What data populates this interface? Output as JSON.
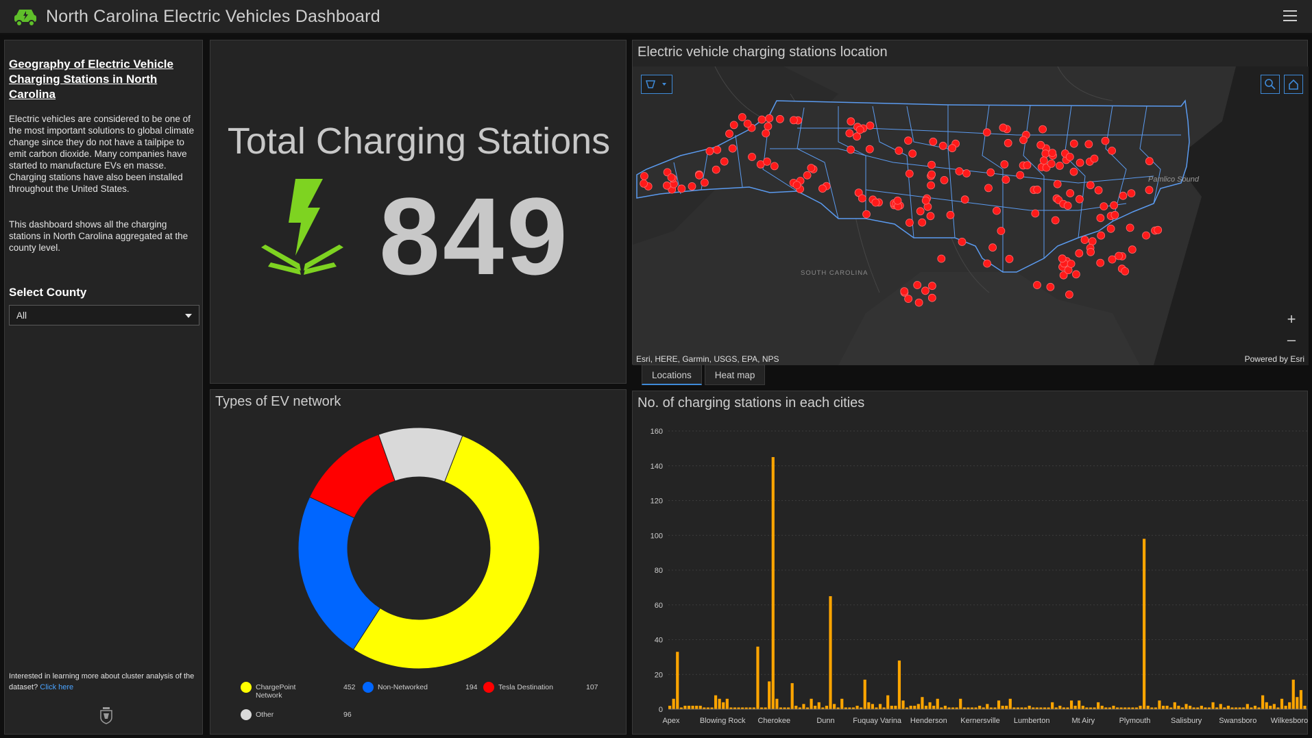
{
  "header": {
    "title": "North Carolina Electric Vehicles Dashboard",
    "logo_icon": "electric-car-icon",
    "menu_icon": "hamburger-menu-icon"
  },
  "sidebar": {
    "heading": "Geography of Electric Vehicle Charging Stations in North Carolina",
    "paragraph1": "Electric vehicles are considered to be one of the most important solutions to global climate change since they do not have a tailpipe to emit carbon dioxide. Many companies have started to manufacture EVs en masse. Charging stations have also been installed throughout the United States.",
    "paragraph2": "This dashboard shows all the charging stations in North Carolina aggregated at the county level.",
    "select_label": "Select County",
    "select_value": "All",
    "footer_text": "Interested in learning more about cluster analysis of the dataset?",
    "footer_link": "Click here"
  },
  "total": {
    "label": "Total Charging Stations",
    "value": "849",
    "icon": "lightning-bolt-icon",
    "icon_color": "#7ed321"
  },
  "map": {
    "title": "Electric vehicle charging stations location",
    "attribution_left": "Esri, HERE, Garmin, USGS, EPA, NPS",
    "attribution_right": "Powered by Esri",
    "labels": {
      "south_carolina": "SOUTH CAROLINA",
      "pamlico_sound": "Pamlico Sound"
    },
    "tabs": [
      "Locations",
      "Heat map"
    ],
    "active_tab": "Locations",
    "marker_color": "#ff1a1a",
    "border_color": "#5b9bf0"
  },
  "donut": {
    "title": "Types of EV network",
    "legend": [
      {
        "name": "ChargePoint Network",
        "value": "452",
        "color": "#ffff00"
      },
      {
        "name": "Non-Networked",
        "value": "194",
        "color": "#0066ff"
      },
      {
        "name": "Tesla Destination",
        "value": "107",
        "color": "#ff0000"
      },
      {
        "name": "Other",
        "value": "96",
        "color": "#d9d9d9"
      }
    ]
  },
  "bars": {
    "title": "No. of charging stations in each cities",
    "bar_color": "#ffa500"
  },
  "chart_data": [
    {
      "type": "pie",
      "title": "Types of EV network",
      "categories": [
        "ChargePoint Network",
        "Non-Networked",
        "Tesla Destination",
        "Other"
      ],
      "values": [
        452,
        194,
        107,
        96
      ],
      "colors": [
        "#ffff00",
        "#0066ff",
        "#ff0000",
        "#d9d9d9"
      ],
      "legend": "bottom"
    },
    {
      "type": "bar",
      "title": "No. of charging stations in each cities",
      "ylim": [
        0,
        160
      ],
      "yticks": [
        0,
        20,
        40,
        60,
        80,
        100,
        120,
        140,
        160
      ],
      "grid": true,
      "xtick_labels": [
        "Apex",
        "Blowing Rock",
        "Cherokee",
        "Dunn",
        "Fuquay Varina",
        "Henderson",
        "Kernersville",
        "Lumberton",
        "Mt Airy",
        "Plymouth",
        "Salisbury",
        "Swansboro",
        "Wilkesboro"
      ],
      "values": [
        2,
        6,
        33,
        1,
        2,
        2,
        2,
        2,
        2,
        1,
        1,
        1,
        8,
        6,
        4,
        6,
        1,
        1,
        1,
        1,
        1,
        1,
        1,
        36,
        1,
        1,
        16,
        145,
        6,
        1,
        1,
        1,
        15,
        2,
        1,
        3,
        1,
        6,
        2,
        4,
        1,
        2,
        65,
        3,
        1,
        6,
        1,
        1,
        1,
        2,
        1,
        17,
        4,
        3,
        1,
        3,
        1,
        8,
        2,
        2,
        28,
        5,
        1,
        2,
        2,
        3,
        7,
        2,
        4,
        2,
        6,
        1,
        2,
        1,
        1,
        1,
        6,
        1,
        1,
        1,
        1,
        2,
        1,
        3,
        1,
        1,
        5,
        2,
        2,
        6,
        1,
        1,
        1,
        1,
        2,
        1,
        1,
        1,
        1,
        1,
        4,
        1,
        2,
        1,
        1,
        5,
        2,
        5,
        2,
        1,
        1,
        1,
        4,
        2,
        1,
        1,
        2,
        1,
        1,
        1,
        1,
        1,
        1,
        2,
        98,
        2,
        1,
        1,
        5,
        2,
        2,
        1,
        4,
        2,
        1,
        3,
        2,
        1,
        1,
        2,
        1,
        1,
        4,
        1,
        3,
        1,
        2,
        1,
        1,
        1,
        1,
        3,
        1,
        2,
        1,
        8,
        4,
        2,
        3,
        1,
        6,
        2,
        4,
        17,
        7,
        11,
        2
      ]
    }
  ]
}
